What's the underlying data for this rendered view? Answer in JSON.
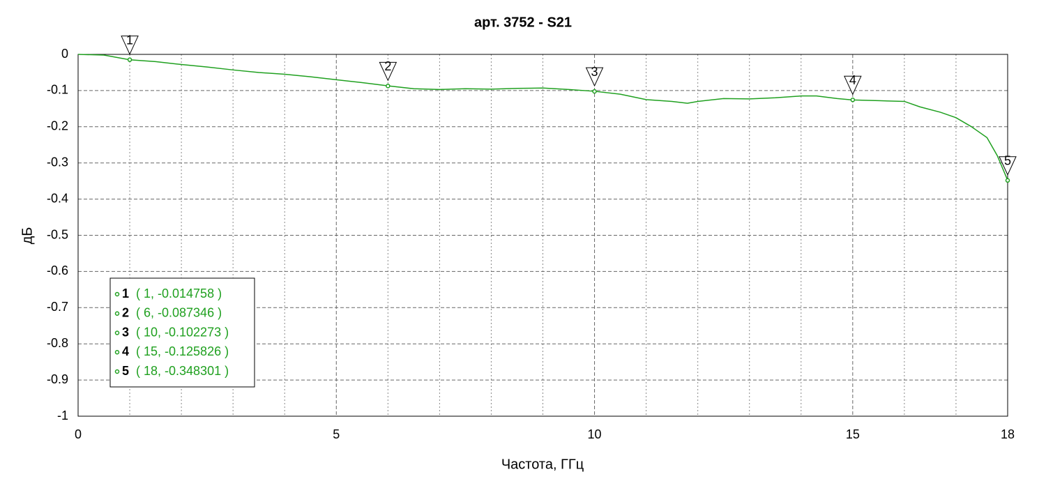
{
  "chart_data": {
    "type": "line",
    "title": "арт. 3752 - S21",
    "x_label": "Частота, ГГц",
    "y_label": "дБ",
    "x": [
      0,
      0.5,
      1,
      1.5,
      2,
      2.5,
      3,
      3.5,
      4,
      4.5,
      5,
      5.5,
      6,
      6.5,
      7,
      7.5,
      8,
      8.5,
      9,
      9.5,
      10,
      10.5,
      11,
      11.5,
      11.8,
      12,
      12.5,
      13,
      13.5,
      14,
      14.3,
      14.7,
      15,
      15.5,
      16,
      16.3,
      16.7,
      17,
      17.3,
      17.6,
      17.8,
      18
    ],
    "values": [
      0,
      -0.002,
      -0.015,
      -0.02,
      -0.028,
      -0.035,
      -0.043,
      -0.05,
      -0.055,
      -0.062,
      -0.07,
      -0.078,
      -0.087,
      -0.095,
      -0.097,
      -0.095,
      -0.096,
      -0.094,
      -0.093,
      -0.097,
      -0.102,
      -0.11,
      -0.125,
      -0.13,
      -0.135,
      -0.13,
      -0.122,
      -0.123,
      -0.12,
      -0.115,
      -0.115,
      -0.122,
      -0.126,
      -0.128,
      -0.13,
      -0.145,
      -0.16,
      -0.175,
      -0.2,
      -0.23,
      -0.28,
      -0.348
    ],
    "color": "#1fa01f",
    "xlim": [
      0,
      18
    ],
    "xticks": [
      0,
      5,
      10,
      15,
      18
    ],
    "ylim": [
      -1,
      0
    ],
    "yticks": [
      0,
      -0.1,
      -0.2,
      -0.3,
      -0.4,
      -0.5,
      -0.6,
      -0.7,
      -0.8,
      -0.9,
      -1
    ],
    "grid": true,
    "minor_grid_step": 1,
    "markers": [
      {
        "name": "1",
        "x": 1,
        "y": -0.014758,
        "label": "( 1, -0.014758 )"
      },
      {
        "name": "2",
        "x": 6,
        "y": -0.087346,
        "label": "( 6, -0.087346 )"
      },
      {
        "name": "3",
        "x": 10,
        "y": -0.102273,
        "label": "( 10, -0.102273 )"
      },
      {
        "name": "4",
        "x": 15,
        "y": -0.125826,
        "label": "( 15, -0.125826 )"
      },
      {
        "name": "5",
        "x": 18,
        "y": -0.348301,
        "label": "( 18, -0.348301 )"
      }
    ]
  }
}
